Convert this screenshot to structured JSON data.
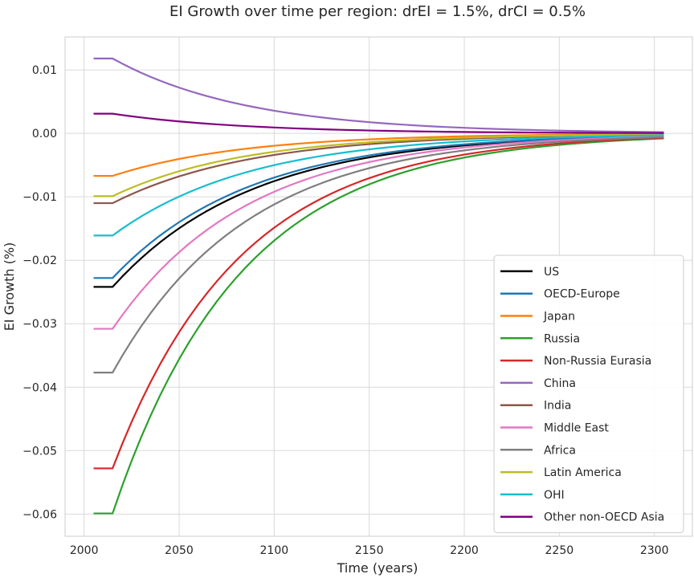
{
  "chart_data": {
    "type": "line",
    "title": "EI Growth over time per region: drEI = 1.5%, drCI = 0.5%",
    "xlabel": "Time (years)",
    "ylabel": "EI Growth (%)",
    "xlim": [
      1990,
      2320
    ],
    "ylim": [
      -0.0635,
      0.0152
    ],
    "xticks": [
      2000,
      2050,
      2100,
      2150,
      2200,
      2250,
      2300
    ],
    "xtick_labels": [
      "2000",
      "2050",
      "2100",
      "2150",
      "2200",
      "2250",
      "2300"
    ],
    "yticks": [
      0.01,
      0.0,
      -0.01,
      -0.02,
      -0.03,
      -0.04,
      -0.05,
      -0.06
    ],
    "ytick_labels": [
      "0.01",
      "0.00",
      "−0.01",
      "−0.02",
      "−0.03",
      "−0.04",
      "−0.05",
      "−0.06"
    ],
    "grid": true,
    "legend_position": "lower-right",
    "curve": {
      "start_year": 2005,
      "flat_until": 2015,
      "end_year": 2305,
      "step": 5
    },
    "series": [
      {
        "name": "US",
        "color": "#000000",
        "start": -0.0242,
        "end": -0.00045
      },
      {
        "name": "OECD-Europe",
        "color": "#1f77b4",
        "start": -0.0228,
        "end": -0.0004
      },
      {
        "name": "Japan",
        "color": "#ff7f0e",
        "start": -0.0067,
        "end": -0.0001
      },
      {
        "name": "Russia",
        "color": "#2ca02c",
        "start": -0.0599,
        "end": -0.0008
      },
      {
        "name": "Non-Russia Eurasia",
        "color": "#d62728",
        "start": -0.0528,
        "end": -0.0007
      },
      {
        "name": "China",
        "color": "#9467bd",
        "start": 0.0118,
        "end": 0.0002
      },
      {
        "name": "India",
        "color": "#8c564b",
        "start": -0.011,
        "end": -0.0002
      },
      {
        "name": "Middle East",
        "color": "#e377c2",
        "start": -0.0308,
        "end": -0.0005
      },
      {
        "name": "Africa",
        "color": "#7f7f7f",
        "start": -0.0377,
        "end": -0.0006
      },
      {
        "name": "Latin America",
        "color": "#bcbd22",
        "start": -0.0099,
        "end": -0.00015
      },
      {
        "name": "OHI",
        "color": "#17becf",
        "start": -0.0161,
        "end": -0.0003
      },
      {
        "name": "Other non-OECD Asia",
        "color": "#800080",
        "start": 0.0031,
        "end": 5e-05
      }
    ]
  }
}
